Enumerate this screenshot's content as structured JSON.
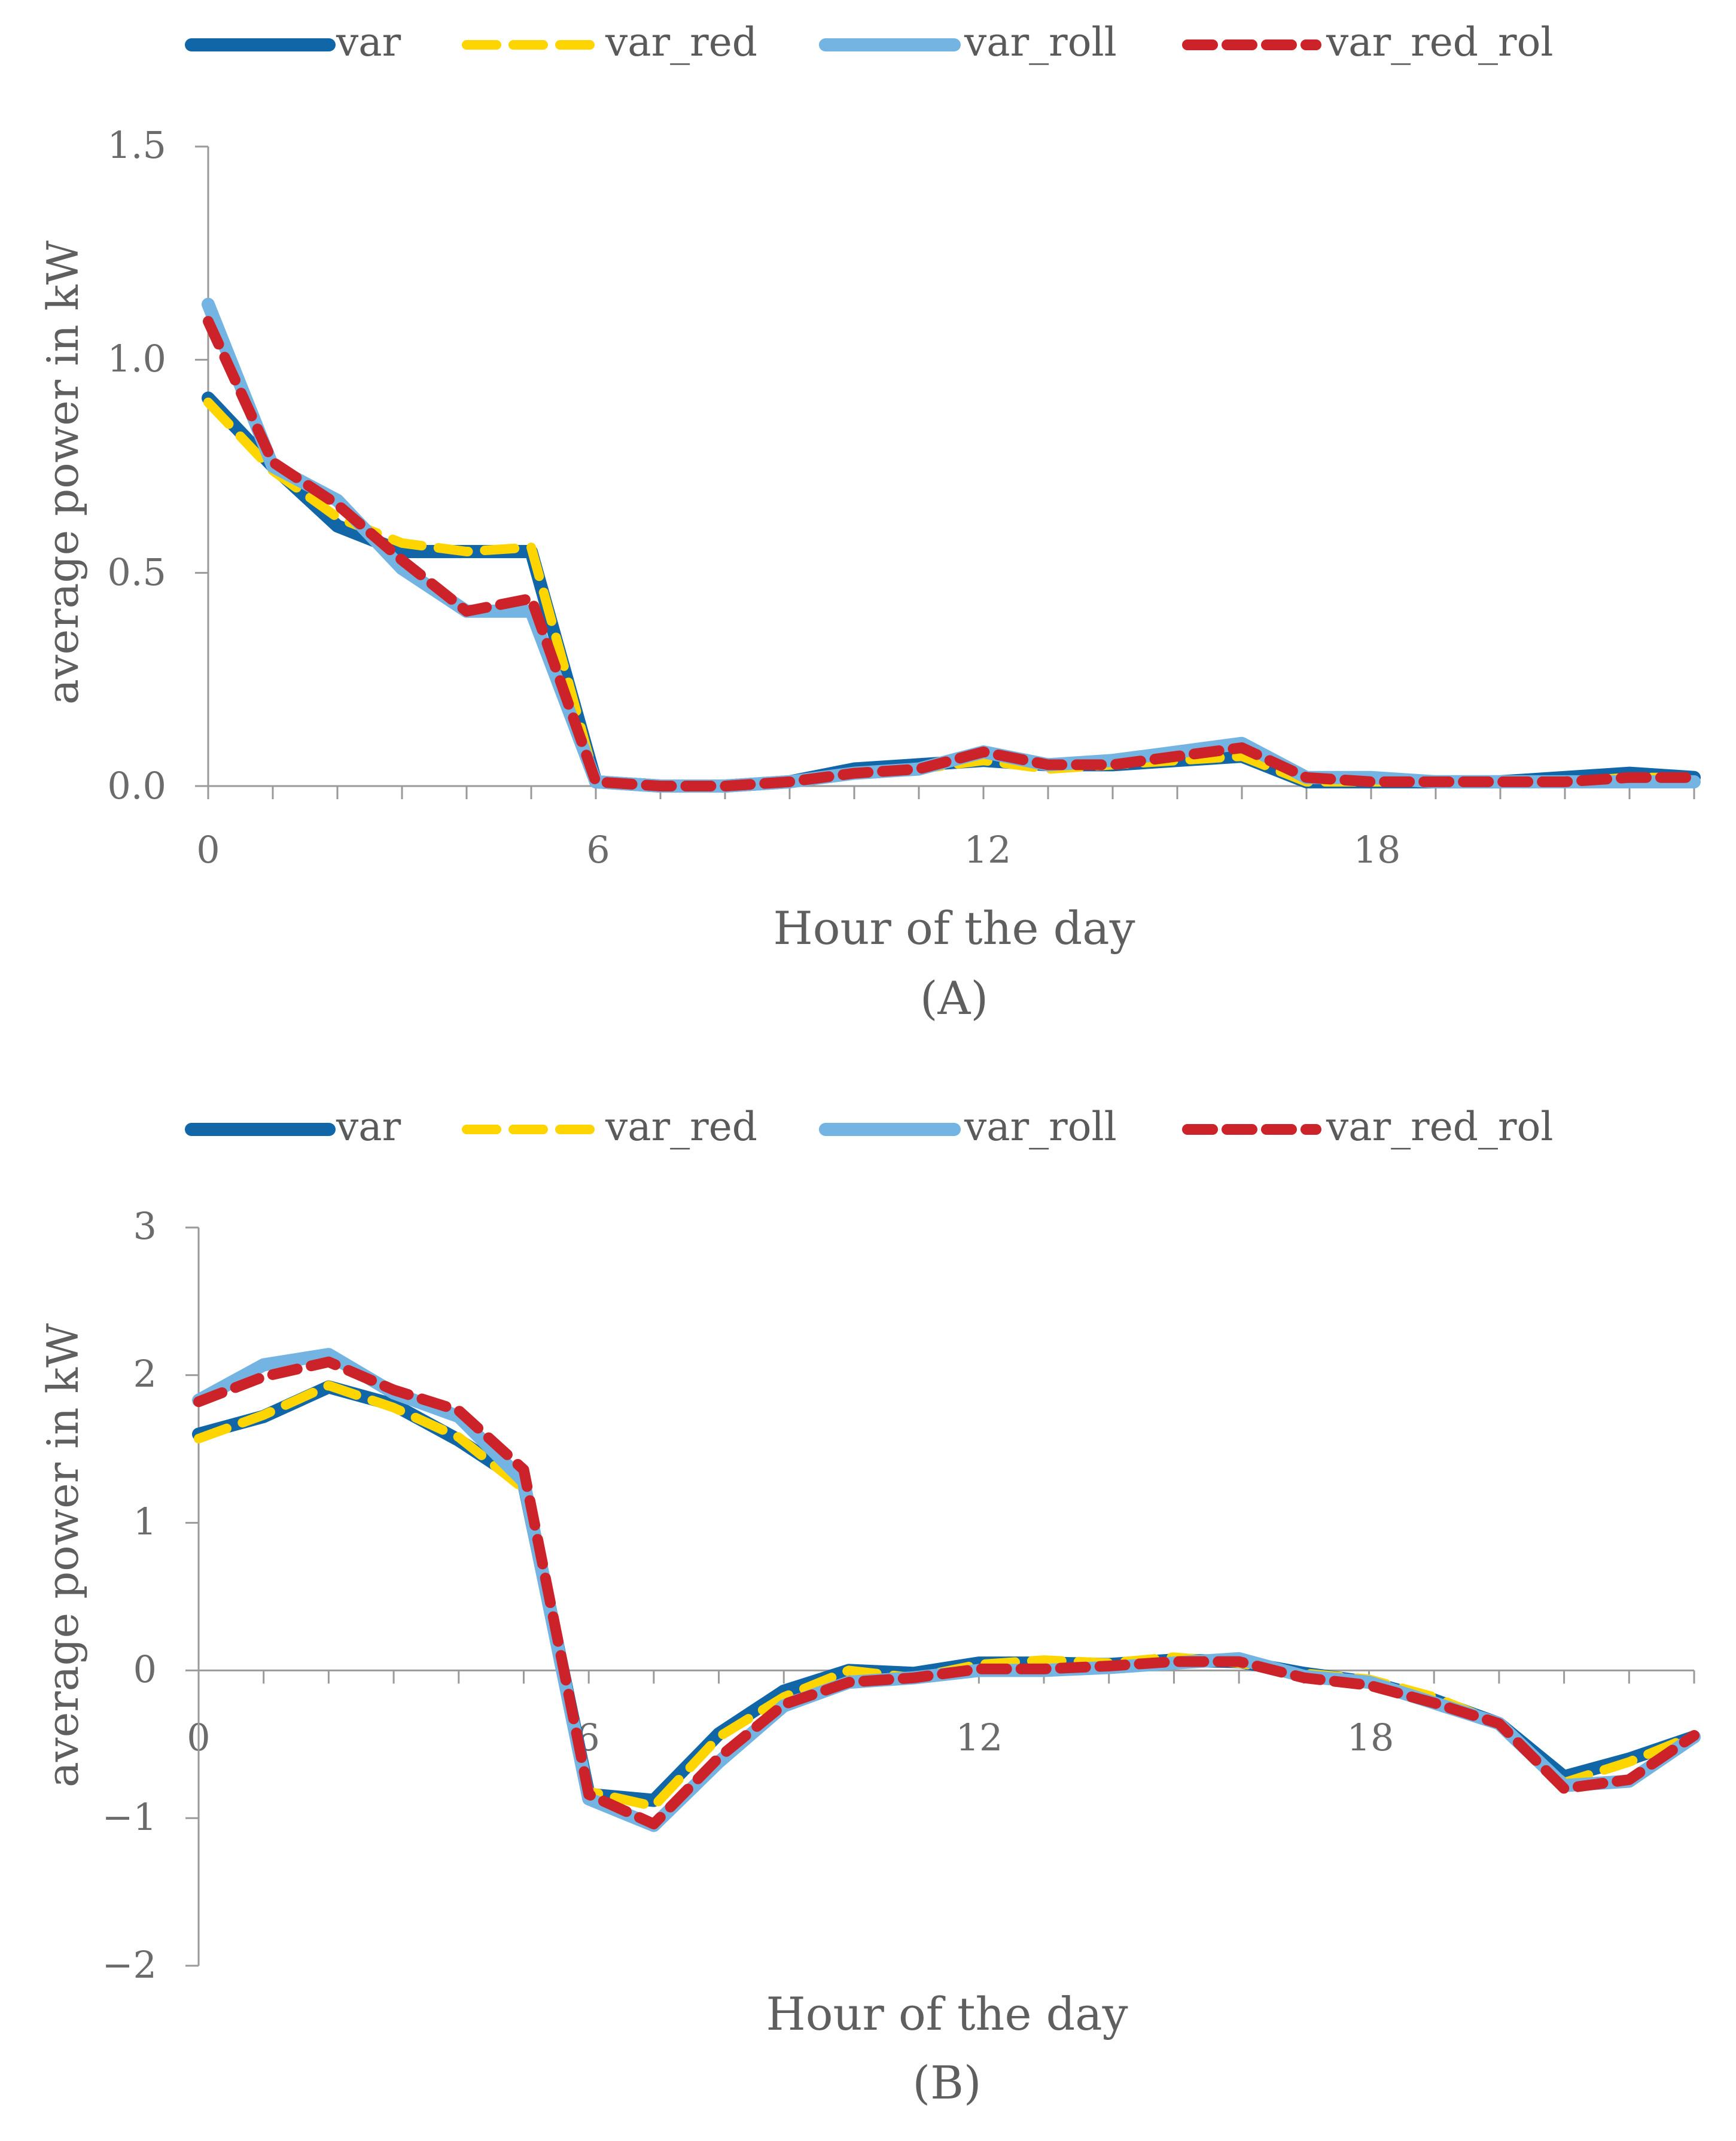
{
  "colors": {
    "var": "#1166a8",
    "var_red": "#ffd500",
    "var_roll": "#74b4e2",
    "var_red_rol": "#cc2229",
    "axis": "#9a9a9a",
    "text": "#6b6b6b"
  },
  "chart_data": [
    {
      "type": "line",
      "caption": "(A)",
      "xlabel": "Hour of the day",
      "ylabel": "average power in kW",
      "xlim": [
        0,
        23
      ],
      "ylim": [
        0,
        1.5
      ],
      "x_ticks": [
        0,
        6,
        12,
        18
      ],
      "x_tick_labels": [
        "0",
        "6",
        "12",
        "18"
      ],
      "y_ticks": [
        0,
        0.5,
        1.0,
        1.5
      ],
      "y_tick_labels": [
        "0.0",
        "0.5",
        "1.0",
        "1.5"
      ],
      "legend": [
        "var",
        "var_red",
        "var_roll",
        "var_red_rol"
      ],
      "x": [
        0,
        1,
        2,
        3,
        4,
        5,
        6,
        7,
        8,
        9,
        10,
        11,
        12,
        13,
        14,
        15,
        16,
        17,
        18,
        19,
        20,
        21,
        22,
        23
      ],
      "series": [
        {
          "name": "var",
          "values": [
            0.91,
            0.75,
            0.61,
            0.55,
            0.55,
            0.55,
            0.01,
            0.0,
            0.0,
            0.01,
            0.04,
            0.05,
            0.06,
            0.05,
            0.05,
            0.06,
            0.07,
            0.01,
            0.01,
            0.01,
            0.01,
            0.02,
            0.03,
            0.02
          ]
        },
        {
          "name": "var_red",
          "values": [
            0.9,
            0.74,
            0.63,
            0.57,
            0.55,
            0.56,
            0.01,
            0.0,
            0.0,
            0.01,
            0.03,
            0.04,
            0.06,
            0.04,
            0.05,
            0.06,
            0.07,
            0.01,
            0.01,
            0.01,
            0.01,
            0.01,
            0.02,
            0.02
          ]
        },
        {
          "name": "var_roll",
          "values": [
            1.13,
            0.75,
            0.67,
            0.51,
            0.41,
            0.41,
            0.01,
            0.0,
            0.0,
            0.01,
            0.03,
            0.04,
            0.08,
            0.05,
            0.06,
            0.08,
            0.1,
            0.02,
            0.02,
            0.01,
            0.01,
            0.01,
            0.01,
            0.01
          ]
        },
        {
          "name": "var_red_rol",
          "values": [
            1.09,
            0.76,
            0.66,
            0.53,
            0.41,
            0.44,
            0.01,
            0.0,
            0.0,
            0.01,
            0.03,
            0.04,
            0.08,
            0.05,
            0.05,
            0.07,
            0.09,
            0.02,
            0.01,
            0.01,
            0.01,
            0.01,
            0.02,
            0.02
          ]
        }
      ]
    },
    {
      "type": "line",
      "caption": "(B)",
      "xlabel": "Hour of the day",
      "ylabel": "average power in kW",
      "xlim": [
        0,
        23
      ],
      "ylim": [
        -2,
        3
      ],
      "x_ticks": [
        0,
        6,
        12,
        18
      ],
      "x_tick_labels": [
        "0",
        "6",
        "12",
        "18"
      ],
      "y_ticks": [
        -2,
        -1,
        0,
        1,
        2,
        3
      ],
      "y_tick_labels": [
        "−2",
        "−1",
        "0",
        "1",
        "2",
        "3"
      ],
      "legend": [
        "var",
        "var_red",
        "var_roll",
        "var_red_rol"
      ],
      "x": [
        0,
        1,
        2,
        3,
        4,
        5,
        6,
        7,
        8,
        9,
        10,
        11,
        12,
        13,
        14,
        15,
        16,
        17,
        18,
        19,
        20,
        21,
        22,
        23
      ],
      "series": [
        {
          "name": "var",
          "values": [
            1.6,
            1.72,
            1.92,
            1.8,
            1.56,
            1.27,
            -0.84,
            -0.88,
            -0.43,
            -0.14,
            0.0,
            -0.02,
            0.05,
            0.05,
            0.04,
            0.07,
            0.06,
            -0.02,
            -0.08,
            -0.2,
            -0.36,
            -0.72,
            -0.6,
            -0.45
          ]
        },
        {
          "name": "var_red",
          "values": [
            1.57,
            1.73,
            1.93,
            1.78,
            1.58,
            1.23,
            -0.82,
            -0.92,
            -0.45,
            -0.18,
            0.0,
            -0.05,
            0.04,
            0.07,
            0.05,
            0.09,
            0.05,
            -0.02,
            -0.06,
            -0.18,
            -0.36,
            -0.76,
            -0.62,
            -0.44
          ]
        },
        {
          "name": "var_roll",
          "values": [
            1.83,
            2.07,
            2.14,
            1.88,
            1.72,
            1.28,
            -0.87,
            -1.05,
            -0.62,
            -0.24,
            -0.08,
            -0.05,
            0.0,
            0.0,
            0.02,
            0.05,
            0.08,
            -0.04,
            -0.08,
            -0.22,
            -0.36,
            -0.78,
            -0.75,
            -0.45
          ]
        },
        {
          "name": "var_red_rol",
          "values": [
            1.82,
            1.99,
            2.09,
            1.9,
            1.76,
            1.36,
            -0.84,
            -1.04,
            -0.59,
            -0.23,
            -0.08,
            -0.05,
            0.01,
            0.01,
            0.03,
            0.06,
            0.06,
            -0.05,
            -0.1,
            -0.22,
            -0.36,
            -0.8,
            -0.74,
            -0.44
          ]
        }
      ]
    }
  ]
}
